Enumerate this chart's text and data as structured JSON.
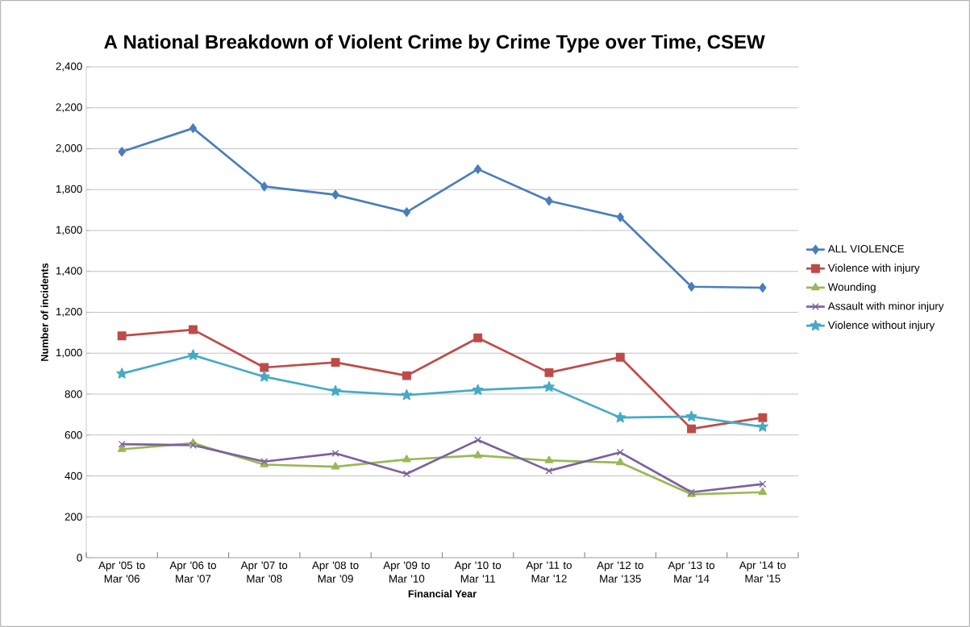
{
  "chart_data": {
    "type": "line",
    "title": "A National Breakdown of Violent Crime by Crime Type over Time, CSEW",
    "xlabel": "Financial Year",
    "ylabel": "Number of incidents",
    "categories": [
      "Apr '05 to Mar '06",
      "Apr '06 to Mar '07",
      "Apr '07 to Mar '08",
      "Apr '08 to Mar '09",
      "Apr '09 to Mar '10",
      "Apr '10 to Mar '11",
      "Apr '11 to Mar '12",
      "Apr '12 to Mar '135",
      "Apr '13 to Mar '14",
      "Apr '14 to Mar '15"
    ],
    "series": [
      {
        "name": "ALL VIOLENCE",
        "color": "#4a7ebb",
        "marker": "diamond",
        "values": [
          1985,
          2100,
          1815,
          1775,
          1690,
          1900,
          1745,
          1665,
          1325,
          1320
        ]
      },
      {
        "name": "Violence with injury",
        "color": "#be4b48",
        "marker": "square",
        "values": [
          1085,
          1115,
          930,
          955,
          890,
          1075,
          905,
          980,
          630,
          685
        ]
      },
      {
        "name": "Wounding",
        "color": "#98b954",
        "marker": "triangle",
        "values": [
          530,
          560,
          455,
          445,
          480,
          500,
          475,
          465,
          310,
          320
        ]
      },
      {
        "name": "Assault with minor injury",
        "color": "#7d60a0",
        "marker": "cross",
        "values": [
          555,
          550,
          470,
          510,
          410,
          575,
          425,
          515,
          320,
          360
        ]
      },
      {
        "name": "Violence without injury",
        "color": "#46aac5",
        "marker": "star",
        "values": [
          900,
          990,
          885,
          815,
          795,
          820,
          835,
          685,
          690,
          640
        ]
      }
    ],
    "ylim": [
      0,
      2400
    ],
    "yticks": [
      0,
      200,
      400,
      600,
      800,
      {
        "value": 1000,
        "label": "1,000"
      },
      {
        "value": 1200,
        "label": "1,200"
      },
      {
        "value": 1400,
        "label": "1,400"
      },
      {
        "value": 1600,
        "label": "1,600"
      },
      {
        "value": 1800,
        "label": "1,800"
      },
      {
        "value": 2000,
        "label": "2,000"
      },
      {
        "value": 2200,
        "label": "2,200"
      },
      {
        "value": 2400,
        "label": "2,400"
      }
    ],
    "grid": "y",
    "legend": "right",
    "line_style": "solid"
  }
}
